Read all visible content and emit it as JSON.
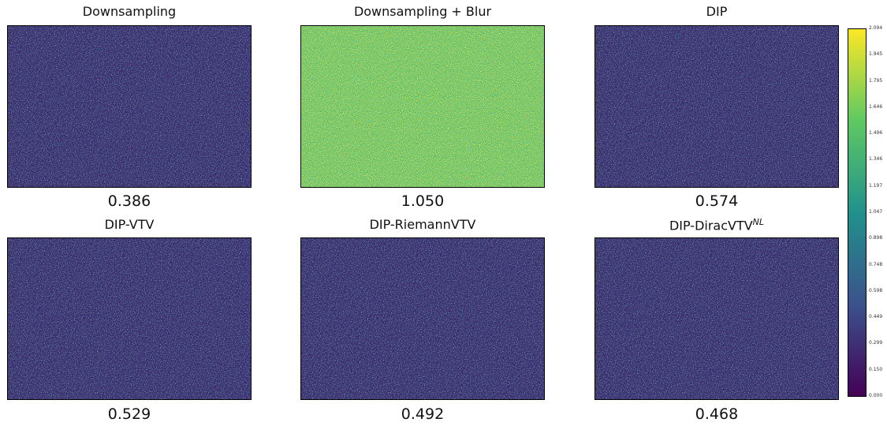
{
  "panels": [
    {
      "title": "Downsampling",
      "score": "0.386"
    },
    {
      "title": "Downsampling + Blur",
      "score": "1.050"
    },
    {
      "title": "DIP",
      "score": "0.574"
    },
    {
      "title": "DIP-VTV",
      "score": "0.529"
    },
    {
      "title": "DIP-RiemannVTV",
      "score": "0.492"
    },
    {
      "title": "DIP-DiracVTV",
      "title_sup": "NL",
      "score": "0.468"
    }
  ],
  "colorbar": {
    "ticks": [
      "0.000",
      "0.150",
      "0.299",
      "0.449",
      "0.598",
      "0.748",
      "0.898",
      "1.047",
      "1.197",
      "1.346",
      "1.496",
      "1.646",
      "1.795",
      "1.945",
      "2.094"
    ]
  }
}
